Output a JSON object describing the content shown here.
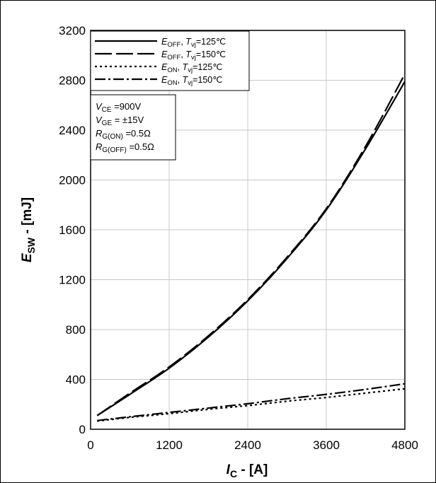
{
  "chart_data": {
    "type": "line",
    "xlabel_main": "I",
    "xlabel_sub": "C",
    "xlabel_rest": " - [A]",
    "ylabel_main": "E",
    "ylabel_sub": "SW",
    "ylabel_rest": " - [mJ]",
    "xlim": [
      0,
      4800
    ],
    "ylim": [
      0,
      3200
    ],
    "xticks": [
      "0",
      "1200",
      "2400",
      "3600",
      "4800"
    ],
    "yticks": [
      "0",
      "400",
      "800",
      "1200",
      "1600",
      "2000",
      "2400",
      "2800",
      "3200"
    ],
    "grid": true,
    "legend_position": "top-left",
    "series": [
      {
        "name": "EOFF, Tvj=125℃",
        "sym": "E",
        "symsub": "OFF",
        "cond": "T",
        "condsub": "vj",
        "condval": "=125℃",
        "dash": "solid",
        "x": [
          100,
          600,
          1200,
          1800,
          2400,
          3000,
          3600,
          4200,
          4800
        ],
        "y": [
          110,
          280,
          490,
          740,
          1030,
          1370,
          1760,
          2250,
          2790
        ]
      },
      {
        "name": "EOFF, Tvj=150℃",
        "sym": "E",
        "symsub": "OFF",
        "cond": "T",
        "condsub": "vj",
        "condval": "=150℃",
        "dash": "longdash",
        "x": [
          100,
          600,
          1200,
          1800,
          2400,
          3000,
          3600,
          4200,
          4800
        ],
        "y": [
          110,
          290,
          500,
          750,
          1040,
          1380,
          1770,
          2270,
          2850
        ]
      },
      {
        "name": "EON, Tvj=125℃",
        "sym": "E",
        "symsub": "ON",
        "cond": "T",
        "condsub": "vj",
        "condval": "=125℃",
        "dash": "dotted",
        "x": [
          100,
          600,
          1200,
          1800,
          2400,
          3000,
          3600,
          4200,
          4800
        ],
        "y": [
          65,
          95,
          125,
          160,
          190,
          225,
          255,
          290,
          325
        ]
      },
      {
        "name": "EON, Tvj=150℃",
        "sym": "E",
        "symsub": "ON",
        "cond": "T",
        "condsub": "vj",
        "condval": "=150℃",
        "dash": "dashdot",
        "x": [
          100,
          600,
          1200,
          1800,
          2400,
          3000,
          3600,
          4200,
          4800
        ],
        "y": [
          70,
          100,
          135,
          170,
          205,
          245,
          280,
          320,
          365
        ]
      }
    ],
    "conditions": [
      {
        "sym": "V",
        "sub": "CE",
        "val": " =900V"
      },
      {
        "sym": "V",
        "sub": "GE",
        "val": " = ±15V"
      },
      {
        "sym": "R",
        "sub": "G(ON)",
        "val": " =0.5Ω"
      },
      {
        "sym": "R",
        "sub": "G(OFF)",
        "val": " =0.5Ω"
      }
    ]
  }
}
